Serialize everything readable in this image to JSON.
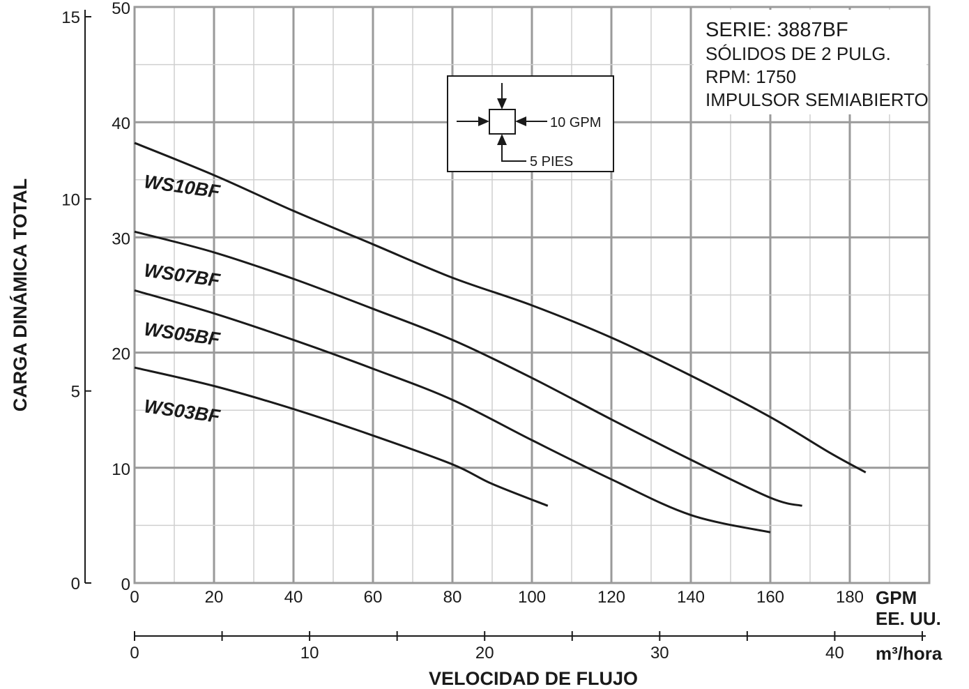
{
  "chart_data": {
    "type": "line",
    "xlabel": "VELOCIDAD DE FLUJO",
    "ylabel": "CARGA DINÁMICA TOTAL",
    "x_primary": {
      "unit": "GPM",
      "unit_line2": "EE. UU.",
      "range": [
        0,
        200
      ],
      "ticks": [
        "0",
        "20",
        "40",
        "60",
        "80",
        "100",
        "120",
        "140",
        "160",
        "180"
      ]
    },
    "x_secondary": {
      "unit": "m³/hora",
      "range": [
        0,
        45.4
      ],
      "ticks": [
        "0",
        "10",
        "20",
        "30",
        "40"
      ]
    },
    "y_primary": {
      "range": [
        0,
        50
      ],
      "ticks": [
        "0",
        "10",
        "20",
        "30",
        "40",
        "50"
      ]
    },
    "y_secondary": {
      "range": [
        0,
        15
      ],
      "ticks": [
        "0",
        "5",
        "10",
        "15"
      ]
    },
    "grid": true,
    "series": [
      {
        "name": "WS10BF",
        "x": [
          0,
          20,
          40,
          60,
          80,
          100,
          120,
          140,
          160,
          175,
          184
        ],
        "y": [
          38.2,
          35.4,
          32.3,
          29.4,
          26.5,
          24.1,
          21.3,
          18.0,
          14.4,
          11.3,
          9.6
        ]
      },
      {
        "name": "WS07BF",
        "x": [
          0,
          20,
          40,
          60,
          80,
          100,
          120,
          140,
          160,
          168
        ],
        "y": [
          30.5,
          28.7,
          26.4,
          23.8,
          21.1,
          17.8,
          14.2,
          10.7,
          7.4,
          6.7
        ]
      },
      {
        "name": "WS05BF",
        "x": [
          0,
          20,
          40,
          60,
          80,
          100,
          120,
          140,
          160
        ],
        "y": [
          25.4,
          23.4,
          21.1,
          18.6,
          15.9,
          12.4,
          9.0,
          5.9,
          4.4
        ]
      },
      {
        "name": "WS03BF",
        "x": [
          0,
          20,
          40,
          60,
          80,
          90,
          104
        ],
        "y": [
          18.7,
          17.1,
          15.1,
          12.8,
          10.3,
          8.6,
          6.7
        ]
      }
    ],
    "info_box": [
      "SERIE: 3887BF",
      "SÓLIDOS DE 2 PULG.",
      "RPM: 1750",
      "IMPULSOR SEMIABIERTO"
    ],
    "scale_legend": {
      "horizontal": "10 GPM",
      "vertical": "5 PIES"
    }
  }
}
